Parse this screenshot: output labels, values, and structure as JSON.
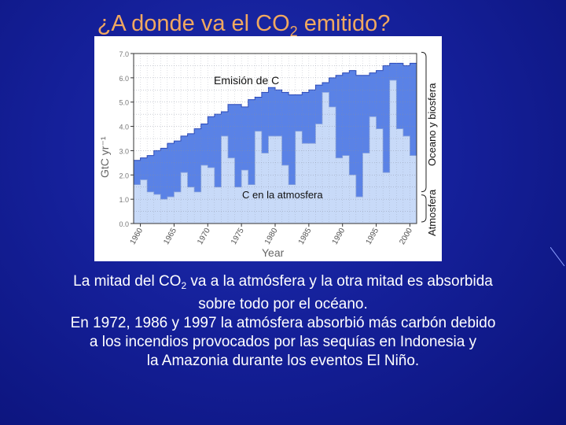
{
  "slide": {
    "title_pre": "¿A donde va el CO",
    "title_sub": "2",
    "title_post": " emitido?",
    "caption": {
      "l1_pre": "La mitad del CO",
      "l1_sub": "2",
      "l1_post": " va a la atmósfera y la otra mitad es absorbida",
      "l2": "sobre todo por el océano.",
      "l3": "En 1972, 1986 y 1997 la atmósfera absorbió más carbón debido",
      "l4": "a los incendios provocados por las sequías en Indonesia y",
      "l5": "la Amazonia durante los eventos El Niño."
    },
    "colors": {
      "background": "#1622a0",
      "title": "#f0a860",
      "emission_fill": "#5a82e6",
      "atmosphere_fill": "#c8daf8"
    }
  },
  "chart_data": {
    "type": "area",
    "xlabel": "Year",
    "ylabel": "GtC yr⁻¹",
    "xlim": [
      1959,
      2001
    ],
    "ylim": [
      0,
      7.0
    ],
    "x_ticks": [
      "1960",
      "1965",
      "1970",
      "1975",
      "1980",
      "1985",
      "1990",
      "1995",
      "2000"
    ],
    "y_ticks": [
      "0.0",
      "1.0",
      "2.0",
      "3.0",
      "4.0",
      "5.0",
      "6.0",
      "7.0"
    ],
    "annotations": {
      "emission": "Emisión de C",
      "atmosphere": "C en la atmosfera",
      "bracket_ocean": "Oceano y biosfera",
      "bracket_atmos": "Atmosfera"
    },
    "x": [
      1959,
      1960,
      1961,
      1962,
      1963,
      1964,
      1965,
      1966,
      1967,
      1968,
      1969,
      1970,
      1971,
      1972,
      1973,
      1974,
      1975,
      1976,
      1977,
      1978,
      1979,
      1980,
      1981,
      1982,
      1983,
      1984,
      1985,
      1986,
      1987,
      1988,
      1989,
      1990,
      1991,
      1992,
      1993,
      1994,
      1995,
      1996,
      1997,
      1998,
      1999,
      2000
    ],
    "series": [
      {
        "name": "Emisión de C",
        "values": [
          2.6,
          2.7,
          2.8,
          3.0,
          3.1,
          3.3,
          3.4,
          3.6,
          3.7,
          3.9,
          4.1,
          4.4,
          4.5,
          4.6,
          4.9,
          4.9,
          4.8,
          5.1,
          5.2,
          5.4,
          5.6,
          5.5,
          5.4,
          5.3,
          5.3,
          5.4,
          5.5,
          5.7,
          5.8,
          6.0,
          6.1,
          6.2,
          6.3,
          6.1,
          6.1,
          6.2,
          6.3,
          6.5,
          6.6,
          6.6,
          6.5,
          6.6
        ]
      },
      {
        "name": "C en la atmosfera",
        "values": [
          1.6,
          1.8,
          1.3,
          1.2,
          1.0,
          1.1,
          1.3,
          2.1,
          1.5,
          1.3,
          2.4,
          2.3,
          1.5,
          3.6,
          2.7,
          1.5,
          2.2,
          1.6,
          3.8,
          2.9,
          3.6,
          3.6,
          2.4,
          1.6,
          3.8,
          3.3,
          3.3,
          4.1,
          5.4,
          4.8,
          2.7,
          2.8,
          2.0,
          1.1,
          2.9,
          4.4,
          3.9,
          2.1,
          5.9,
          3.9,
          3.6,
          2.8
        ]
      }
    ]
  }
}
